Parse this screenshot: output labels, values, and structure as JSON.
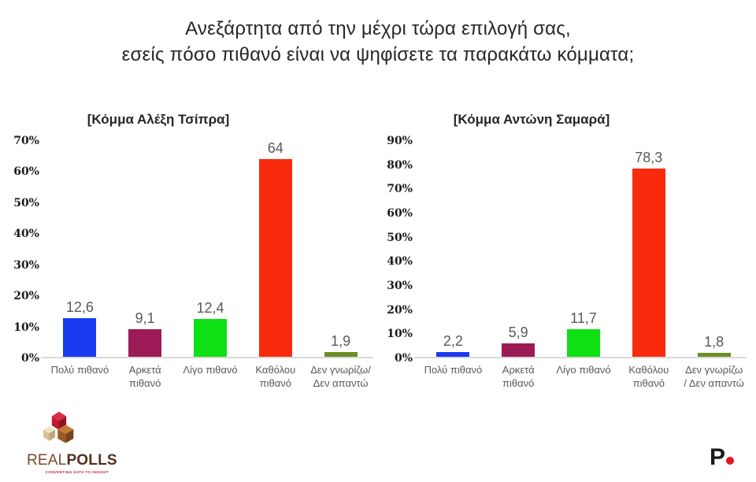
{
  "page": {
    "background": "#ffffff",
    "title_line1": "Ανεξάρτητα από την μέχρι τώρα επιλογή σας,",
    "title_line2": "εσείς πόσο πιθανό είναι να ψηφίσετε τα παρακάτω κόμματα;"
  },
  "chart_data": [
    {
      "type": "bar",
      "title": "[Κόμμα Αλέξη Τσίπρα]",
      "categories": [
        "Πολύ πιθανό",
        "Αρκετά πιθανό",
        "Λίγο πιθανό",
        "Καθόλου πιθανό",
        "Δεν γνωρίζω/Δεν απαντώ"
      ],
      "values": [
        12.6,
        9.1,
        12.4,
        64,
        1.9
      ],
      "value_labels": [
        "12,6",
        "9,1",
        "12,4",
        "64",
        "1,9"
      ],
      "bar_colors": [
        "#1a3af0",
        "#9c1b56",
        "#0ee014",
        "#fa2b0c",
        "#6d8d22"
      ],
      "xlabel": "",
      "ylabel": "",
      "ylim": [
        0,
        70
      ],
      "ytick_labels": [
        "0%",
        "10%",
        "20%",
        "30%",
        "40%",
        "50%",
        "60%",
        "70%"
      ],
      "grid": false,
      "legend": "none"
    },
    {
      "type": "bar",
      "title": "[Κόμμα Αντώνη Σαμαρά]",
      "categories": [
        "Πολύ πιθανό",
        "Αρκετά πιθανό",
        "Λίγο πιθανό",
        "Καθόλου πιθανό",
        "Δεν γνωρίζω / Δεν απαντώ"
      ],
      "values": [
        2.2,
        5.9,
        11.7,
        78.3,
        1.8
      ],
      "value_labels": [
        "2,2",
        "5,9",
        "11,7",
        "78,3",
        "1,8"
      ],
      "bar_colors": [
        "#1a3af0",
        "#9c1b56",
        "#0ee014",
        "#fa2b0c",
        "#6d8d22"
      ],
      "xlabel": "",
      "ylabel": "",
      "ylim": [
        0,
        90
      ],
      "ytick_labels": [
        "0%",
        "10%",
        "20%",
        "30%",
        "40%",
        "50%",
        "60%",
        "70%",
        "80%",
        "90%"
      ],
      "grid": false,
      "legend": "none"
    }
  ],
  "style": {
    "axis_line_color": "#d9d9d9",
    "tick_label_color": "#1a1a1a",
    "value_label_color": "#595959",
    "category_label_color": "#595959",
    "title_color": "#262626"
  },
  "footer": {
    "realpolls": {
      "brand_part1": "REAL",
      "brand_part2": "POLLS",
      "tagline": "CONVERTING DATA TO INSIGHT",
      "brand_color1": "#7a4a28",
      "brand_color2": "#53301a",
      "tagline_color": "#c4232f",
      "cube_colors": {
        "red_top": "#de2c44",
        "red_left": "#c21830",
        "red_right": "#8f1524",
        "cream_top": "#f0e6cc",
        "cream_left": "#d9c298",
        "cream_right": "#c3a877",
        "brown_top": "#c27b36",
        "brown_left": "#9c5a26",
        "brown_right": "#7a421a"
      }
    },
    "publisher": {
      "letter": "P",
      "letter_color": "#1a1a1a",
      "dot_color": "#e8121c"
    }
  }
}
